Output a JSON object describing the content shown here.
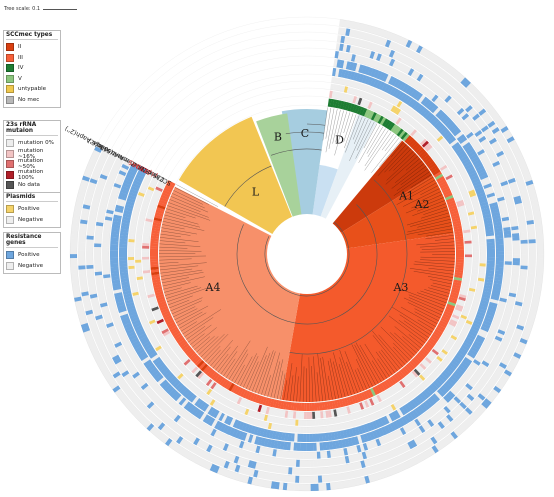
{
  "tree_scale": {
    "label": "Tree scale: 0.1"
  },
  "legends": {
    "sccmec": {
      "title": "SCCmec types",
      "items": [
        {
          "label": "II",
          "color": "#d93f10"
        },
        {
          "label": "III",
          "color": "#f7603a"
        },
        {
          "label": "IV",
          "color": "#1e7d33"
        },
        {
          "label": "V",
          "color": "#8cc67e"
        },
        {
          "label": "untypable",
          "color": "#f0c84e"
        },
        {
          "label": "No mec",
          "color": "#b8b8b8"
        }
      ]
    },
    "rrna": {
      "title": "23s rRNA mutaion",
      "items": [
        {
          "label": "mutation 0%",
          "color": "#eeeeee"
        },
        {
          "label": "mutation ~16%",
          "color": "#f2c4c4"
        },
        {
          "label": "mutation ~50%",
          "color": "#e07070"
        },
        {
          "label": "mutation 100%",
          "color": "#b01e28"
        },
        {
          "label": "No data",
          "color": "#555555"
        }
      ]
    },
    "plasmids": {
      "title": "Plasmids",
      "items": [
        {
          "label": "Positive",
          "color": "#f5d36a"
        },
        {
          "label": "Negative",
          "color": "#eeeeee"
        }
      ]
    },
    "resistance": {
      "title": "Resistance genes",
      "items": [
        {
          "label": "Positive",
          "color": "#6ea6de"
        },
        {
          "label": "Negative",
          "color": "#eeeeee"
        }
      ]
    }
  },
  "clades": [
    {
      "label": "A1"
    },
    {
      "label": "A2"
    },
    {
      "label": "A3"
    },
    {
      "label": "A4"
    },
    {
      "label": "L"
    },
    {
      "label": "B"
    },
    {
      "label": "C"
    },
    {
      "label": "D"
    }
  ],
  "ring_labels": [
    {
      "text": "qacA",
      "color": "#222222"
    },
    {
      "text": "aac(6')-aph(2'')",
      "color": "#222222"
    },
    {
      "text": "aadD",
      "color": "#222222"
    },
    {
      "text": "ant(9)-Ia",
      "color": "#222222"
    },
    {
      "text": "ermA",
      "color": "#222222"
    },
    {
      "text": "mecA",
      "color": "#222222"
    },
    {
      "text": "blaZ",
      "color": "#222222"
    },
    {
      "text": "pLZDRS",
      "color": "#e02020"
    },
    {
      "text": "pLZDRI",
      "color": "#e02020"
    },
    {
      "text": "23S rRNA",
      "color": "#222222"
    },
    {
      "text": "SCCmec",
      "color": "#222222"
    }
  ]
}
